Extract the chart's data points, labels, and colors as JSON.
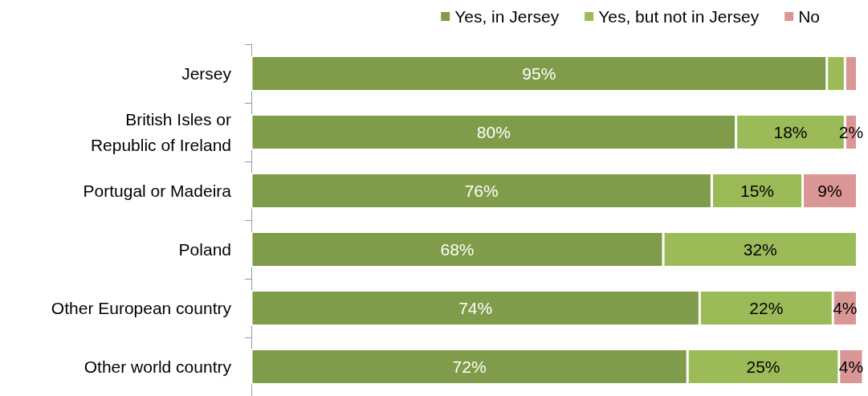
{
  "chart_data": {
    "type": "bar",
    "orientation": "horizontal",
    "stacked": true,
    "legend": "top right",
    "categories": [
      "Jersey",
      "British Isles or\nRepublic of Ireland",
      "Portugal or Madeira",
      "Poland",
      "Other European country",
      "Other world country"
    ],
    "xlim": [
      0,
      101
    ],
    "series": [
      {
        "name": "Yes, in Jersey",
        "color": "#7f9c4a",
        "values": [
          95,
          80,
          76,
          68,
          74,
          72
        ],
        "value_labels": [
          "95%",
          "80%",
          "76%",
          "68%",
          "74%",
          "72%"
        ]
      },
      {
        "name": "Yes, but not in Jersey",
        "color": "#9bbb59",
        "values": [
          3,
          18,
          15,
          32,
          22,
          25
        ],
        "value_labels": [
          null,
          "18%",
          "15%",
          "32%",
          "22%",
          "25%"
        ]
      },
      {
        "name": "No",
        "color": "#d99694",
        "values": [
          2,
          2,
          9,
          null,
          4,
          4
        ],
        "value_labels": [
          null,
          "2%",
          "9%",
          null,
          "4%",
          "4%"
        ]
      }
    ]
  }
}
